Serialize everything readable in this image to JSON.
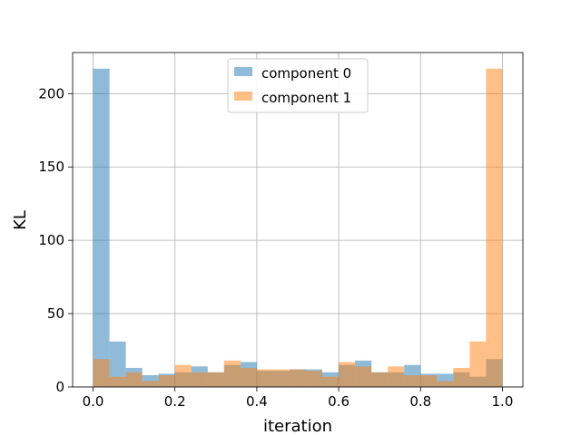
{
  "chart_data": {
    "type": "bar",
    "xlabel": "iteration",
    "ylabel": "KL",
    "xlim": [
      -0.05,
      1.05
    ],
    "ylim": [
      0,
      228
    ],
    "xticks": [
      "0.0",
      "0.2",
      "0.4",
      "0.6",
      "0.8",
      "1.0"
    ],
    "yticks": [
      "0",
      "50",
      "100",
      "150",
      "200"
    ],
    "grid": true,
    "legend_position": "top-center",
    "bin_edges": [
      0.0,
      0.04,
      0.08,
      0.12,
      0.16,
      0.2,
      0.24,
      0.28,
      0.32,
      0.36,
      0.4,
      0.44,
      0.48,
      0.52,
      0.56,
      0.6,
      0.64,
      0.68,
      0.72,
      0.76,
      0.8,
      0.84,
      0.88,
      0.92,
      0.96,
      1.0
    ],
    "series": [
      {
        "name": "component 0",
        "color": "#1f77b4",
        "alpha": 0.5,
        "values": [
          217,
          31,
          13,
          8,
          9,
          10,
          14,
          10,
          15,
          17,
          11,
          11,
          12,
          12,
          10,
          15,
          18,
          10,
          10,
          15,
          9,
          9,
          10,
          7,
          19
        ]
      },
      {
        "name": "component 1",
        "color": "#ff7f0e",
        "alpha": 0.5,
        "values": [
          19,
          7,
          10,
          4,
          8,
          15,
          10,
          10,
          18,
          13,
          12,
          12,
          12,
          11,
          7,
          17,
          14,
          10,
          14,
          8,
          8,
          4,
          13,
          31,
          217
        ]
      }
    ]
  }
}
